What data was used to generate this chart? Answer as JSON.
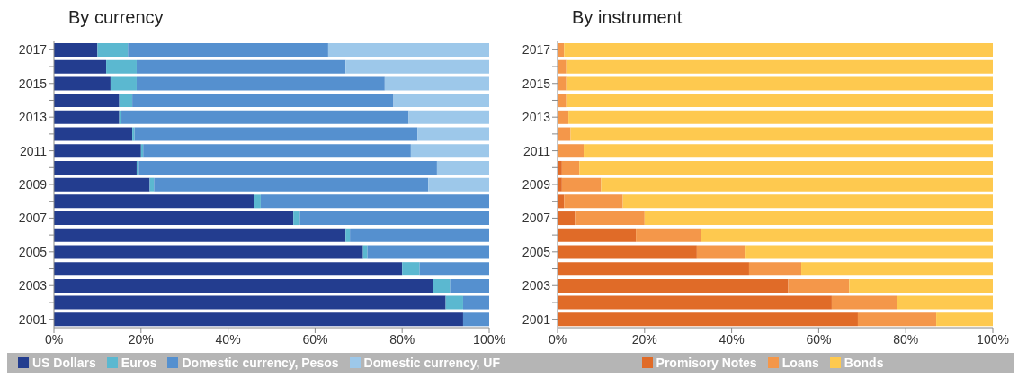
{
  "chart_data": [
    {
      "type": "bar",
      "title": "By currency",
      "orientation": "horizontal",
      "stacked": true,
      "legend": "bottom",
      "categories": [
        "2017",
        null,
        "2015",
        null,
        "2013",
        null,
        "2011",
        null,
        "2009",
        null,
        "2007",
        null,
        "2005",
        null,
        "2003",
        null,
        "2001"
      ],
      "xlim": [
        0,
        100
      ],
      "xticks": [
        {
          "value": 0,
          "label": "0%"
        },
        {
          "value": 20,
          "label": "20%"
        },
        {
          "value": 40,
          "label": "40%"
        },
        {
          "value": 60,
          "label": "60%"
        },
        {
          "value": 80,
          "label": "80%"
        },
        {
          "value": 100,
          "label": "100%"
        }
      ],
      "series": [
        {
          "name": "US Dollars",
          "color": "#233d8f",
          "values": [
            10,
            12,
            13,
            15,
            15,
            18,
            20,
            19,
            22,
            46,
            55,
            67,
            71,
            80,
            87,
            90,
            94
          ]
        },
        {
          "name": "Euros",
          "color": "#5bb8d0",
          "values": [
            7,
            7,
            6,
            3,
            0.5,
            0.5,
            0.5,
            0.5,
            1,
            1.5,
            1.5,
            1,
            1,
            4,
            4,
            4,
            0
          ]
        },
        {
          "name": "Domestic currency, Pesos",
          "color": "#5590cf",
          "values": [
            46,
            48,
            57,
            60,
            66,
            65,
            61.5,
            68.5,
            63,
            52.5,
            43.5,
            32,
            28,
            16,
            9,
            6,
            6
          ]
        },
        {
          "name": "Domestic currency, UF",
          "color": "#9dc8ea",
          "values": [
            37,
            33,
            24,
            22,
            18.5,
            16.5,
            18,
            12,
            14,
            0,
            0,
            0,
            0,
            0,
            0,
            0,
            0
          ]
        }
      ]
    },
    {
      "type": "bar",
      "title": "By instrument",
      "orientation": "horizontal",
      "stacked": true,
      "legend": "bottom",
      "categories": [
        "2017",
        null,
        "2015",
        null,
        "2013",
        null,
        "2011",
        null,
        "2009",
        null,
        "2007",
        null,
        "2005",
        null,
        "2003",
        null,
        "2001"
      ],
      "xlim": [
        0,
        100
      ],
      "xticks": [
        {
          "value": 0,
          "label": "0%"
        },
        {
          "value": 20,
          "label": "20%"
        },
        {
          "value": 40,
          "label": "40%"
        },
        {
          "value": 60,
          "label": "60%"
        },
        {
          "value": 80,
          "label": "80%"
        },
        {
          "value": 100,
          "label": "100%"
        }
      ],
      "series": [
        {
          "name": "Promisory Notes",
          "color": "#e06b28",
          "values": [
            0,
            0,
            0,
            0,
            0,
            0,
            0,
            1,
            1,
            1.5,
            4,
            18,
            32,
            44,
            53,
            63,
            69
          ]
        },
        {
          "name": "Loans",
          "color": "#f4974a",
          "values": [
            1.5,
            2,
            2,
            2,
            2.5,
            3,
            6,
            4,
            9,
            13.5,
            16,
            15,
            11,
            12,
            14,
            15,
            18
          ]
        },
        {
          "name": "Bonds",
          "color": "#fec94f",
          "values": [
            98.5,
            98,
            98,
            98,
            97.5,
            97,
            94,
            95,
            90,
            85,
            80,
            67,
            57,
            44,
            33,
            22,
            13
          ]
        }
      ]
    }
  ]
}
